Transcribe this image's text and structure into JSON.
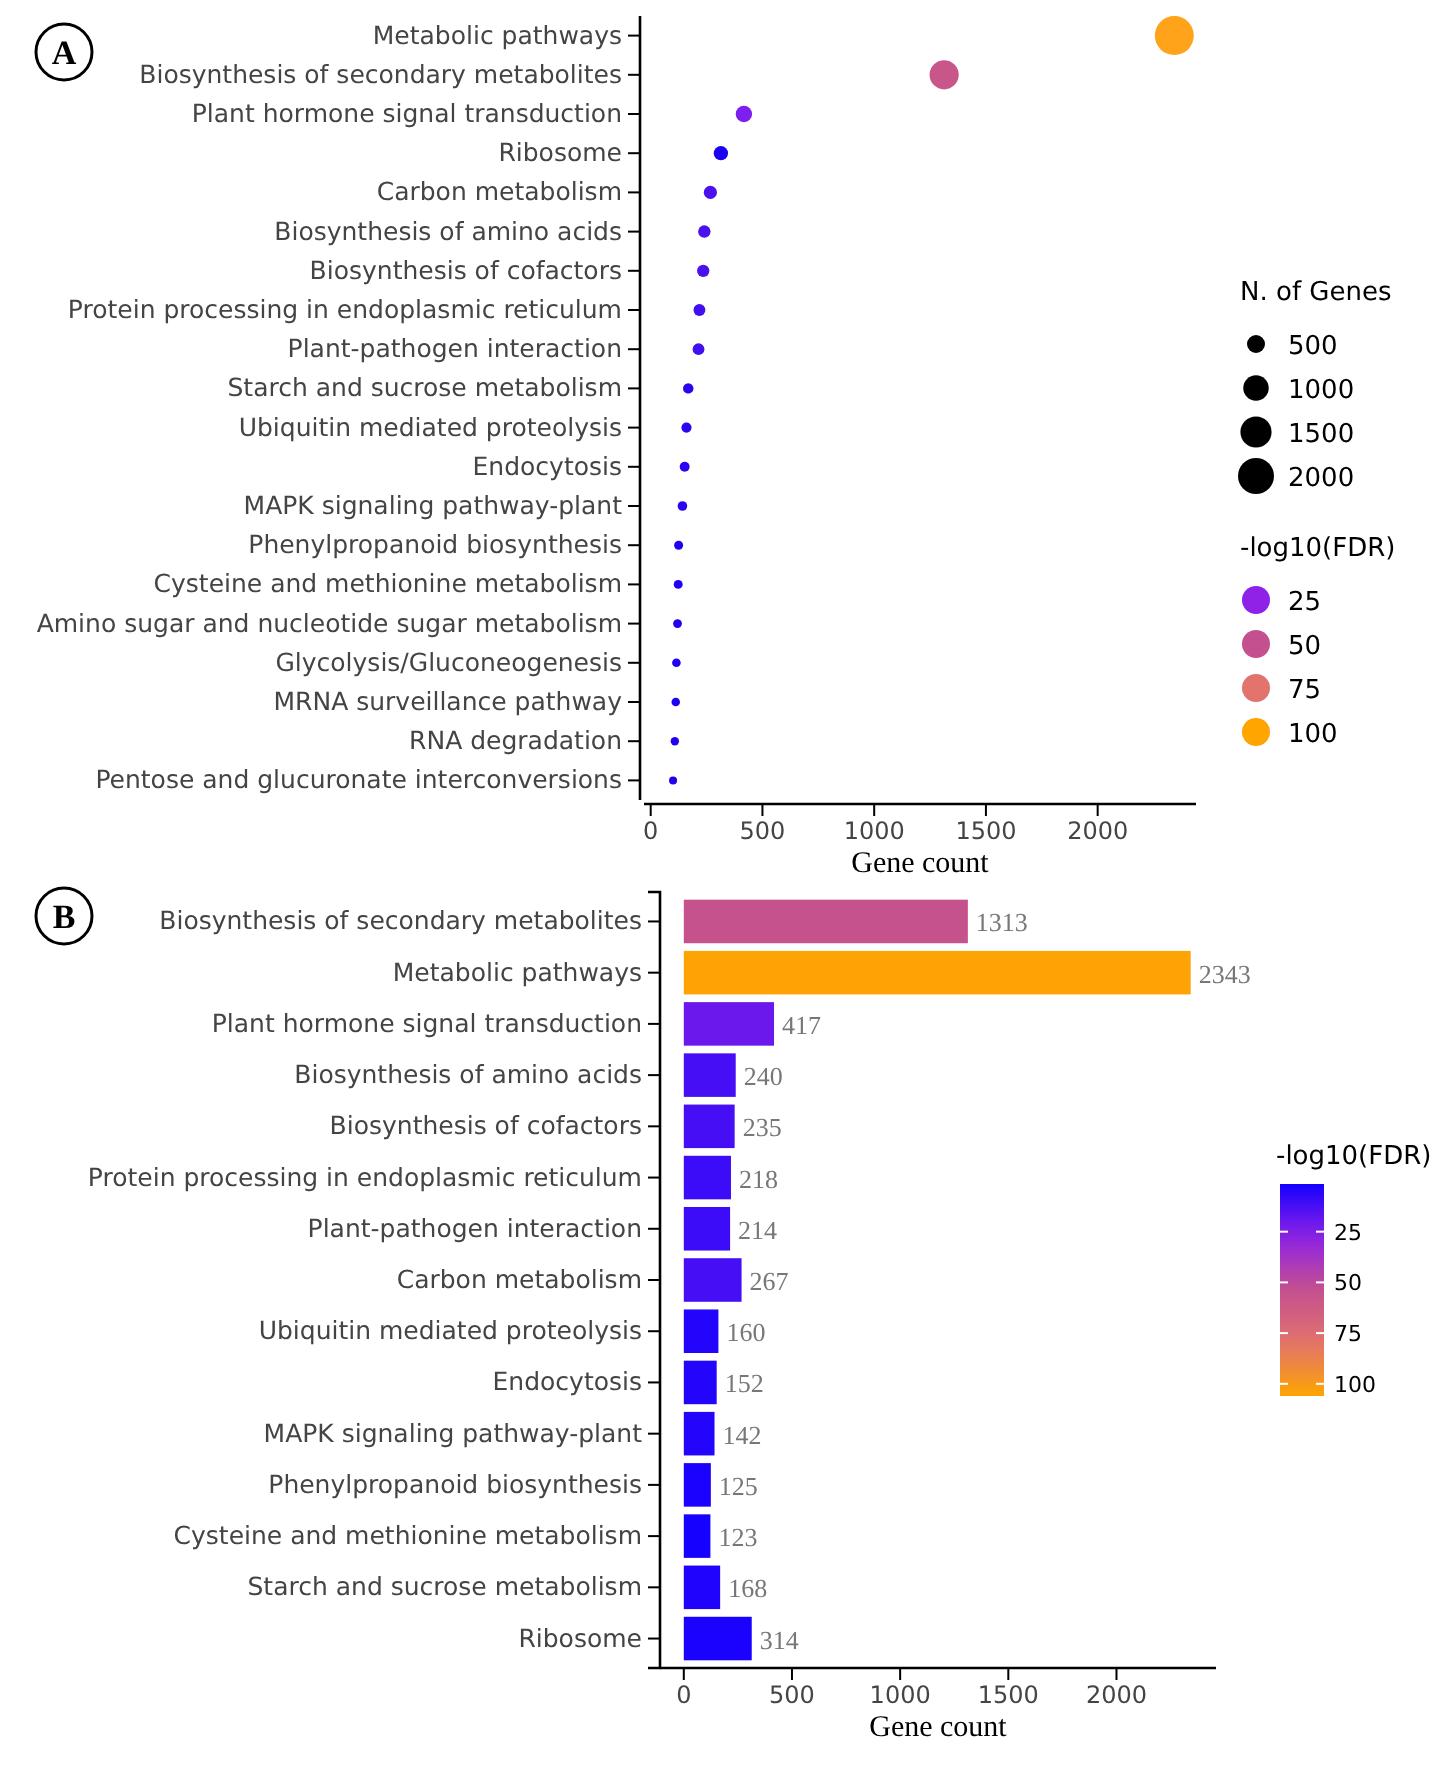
{
  "chart_data": [
    {
      "type": "bubble",
      "orientation": "horizontal",
      "annotations": [
        "A",
        "25",
        "50",
        "75",
        "100"
      ],
      "xlabel": "Gene count",
      "categories": [
        "Metabolic pathways",
        "Biosynthesis of secondary metabolites",
        "Plant hormone signal transduction",
        "Ribosome",
        "Carbon metabolism",
        "Biosynthesis of amino acids",
        "Biosynthesis of cofactors",
        "Protein processing in endoplasmic reticulum",
        "Plant-pathogen interaction",
        "Starch and sucrose metabolism",
        "Ubiquitin mediated proteolysis",
        "Endocytosis",
        "MAPK signaling pathway-plant",
        "Phenylpropanoid biosynthesis",
        "Cysteine and methionine metabolism",
        "Amino sugar and nucleotide sugar metabolism",
        "Glycolysis/Gluconeogenesis",
        "MRNA surveillance pathway",
        "RNA degradation",
        "Pentose and glucuronate interconversions"
      ],
      "values": [
        2343,
        1313,
        417,
        314,
        267,
        240,
        235,
        218,
        214,
        168,
        160,
        152,
        142,
        125,
        123,
        120,
        115,
        112,
        108,
        100
      ],
      "sizes": [
        2343,
        1313,
        417,
        314,
        267,
        240,
        235,
        218,
        214,
        168,
        160,
        152,
        142,
        125,
        123,
        120,
        115,
        112,
        108,
        100
      ],
      "colors": [
        "#ffa31a",
        "#c8568a",
        "#7d1ff0",
        "#1c00f0",
        "#4a10ee",
        "#4a10ee",
        "#4a10ee",
        "#4010ee",
        "#4010ee",
        "#2a05f0",
        "#2a05f0",
        "#2a05f0",
        "#2a05f0",
        "#2000f0",
        "#2000f0",
        "#2000f0",
        "#2000f0",
        "#2000f0",
        "#2000f0",
        "#2000f0"
      ],
      "xlim": [
        -30,
        2440
      ],
      "xticks": [
        0,
        500,
        1000,
        1500,
        2000
      ],
      "size_legend": [
        500,
        1000,
        1500,
        2000
      ],
      "legend_title": "N. of Genes",
      "clabel": "-log10(FDR)"
    },
    {
      "type": "bar",
      "orientation": "horizontal",
      "annotations": [
        "B"
      ],
      "xlabel": "Gene count",
      "categories": [
        "Biosynthesis of secondary metabolites",
        "Metabolic pathways",
        "Plant hormone signal transduction",
        "Biosynthesis of amino acids",
        "Biosynthesis of cofactors",
        "Protein processing in endoplasmic reticulum",
        "Plant-pathogen interaction",
        "Carbon metabolism",
        "Ubiquitin mediated proteolysis",
        "Endocytosis",
        "MAPK signaling pathway-plant",
        "Phenylpropanoid biosynthesis",
        "Cysteine and methionine metabolism",
        "Starch and sucrose metabolism",
        "Ribosome"
      ],
      "values": [
        1313,
        2343,
        417,
        240,
        235,
        218,
        214,
        267,
        160,
        152,
        142,
        125,
        123,
        168,
        314
      ],
      "cvalues": [
        55,
        105,
        20,
        12,
        12,
        10,
        10,
        12,
        5,
        5,
        5,
        3,
        2,
        4,
        3
      ],
      "data_labels": true,
      "xlim": [
        -110,
        2460
      ],
      "xticks": [
        0,
        500,
        1000,
        1500,
        2000
      ],
      "clabel": "-log10(FDR)",
      "clim": [
        1.5,
        106
      ],
      "cticks": [
        25,
        50,
        75,
        100
      ]
    }
  ]
}
